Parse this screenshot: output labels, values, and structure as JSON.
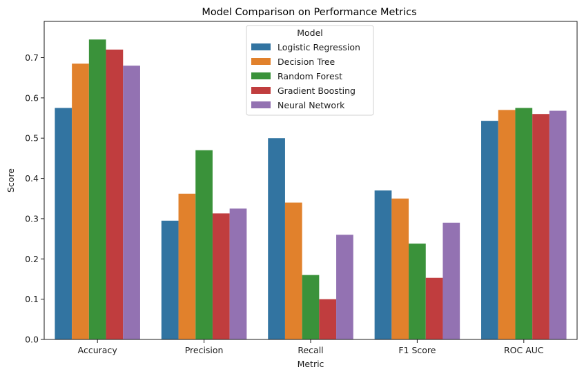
{
  "chart_data": {
    "type": "bar",
    "title": "Model Comparison on Performance Metrics",
    "xlabel": "Metric",
    "ylabel": "Score",
    "ylim": [
      0,
      0.79
    ],
    "yticks": [
      "0.0",
      "0.1",
      "0.2",
      "0.3",
      "0.4",
      "0.5",
      "0.6",
      "0.7"
    ],
    "grid": false,
    "legend_placement": "top-center",
    "legend_title": "Model",
    "categories": [
      "Accuracy",
      "Precision",
      "Recall",
      "F1 Score",
      "ROC AUC"
    ],
    "series": [
      {
        "name": "Logistic Regression",
        "color": "#3274a1",
        "values": [
          0.575,
          0.295,
          0.5,
          0.37,
          0.543
        ]
      },
      {
        "name": "Decision Tree",
        "color": "#e1812c",
        "values": [
          0.685,
          0.362,
          0.34,
          0.35,
          0.57
        ]
      },
      {
        "name": "Random Forest",
        "color": "#3a923a",
        "values": [
          0.745,
          0.47,
          0.16,
          0.238,
          0.575
        ]
      },
      {
        "name": "Gradient Boosting",
        "color": "#c03d3e",
        "values": [
          0.72,
          0.313,
          0.1,
          0.153,
          0.56
        ]
      },
      {
        "name": "Neural Network",
        "color": "#9372b2",
        "values": [
          0.68,
          0.325,
          0.26,
          0.29,
          0.568
        ]
      }
    ]
  }
}
